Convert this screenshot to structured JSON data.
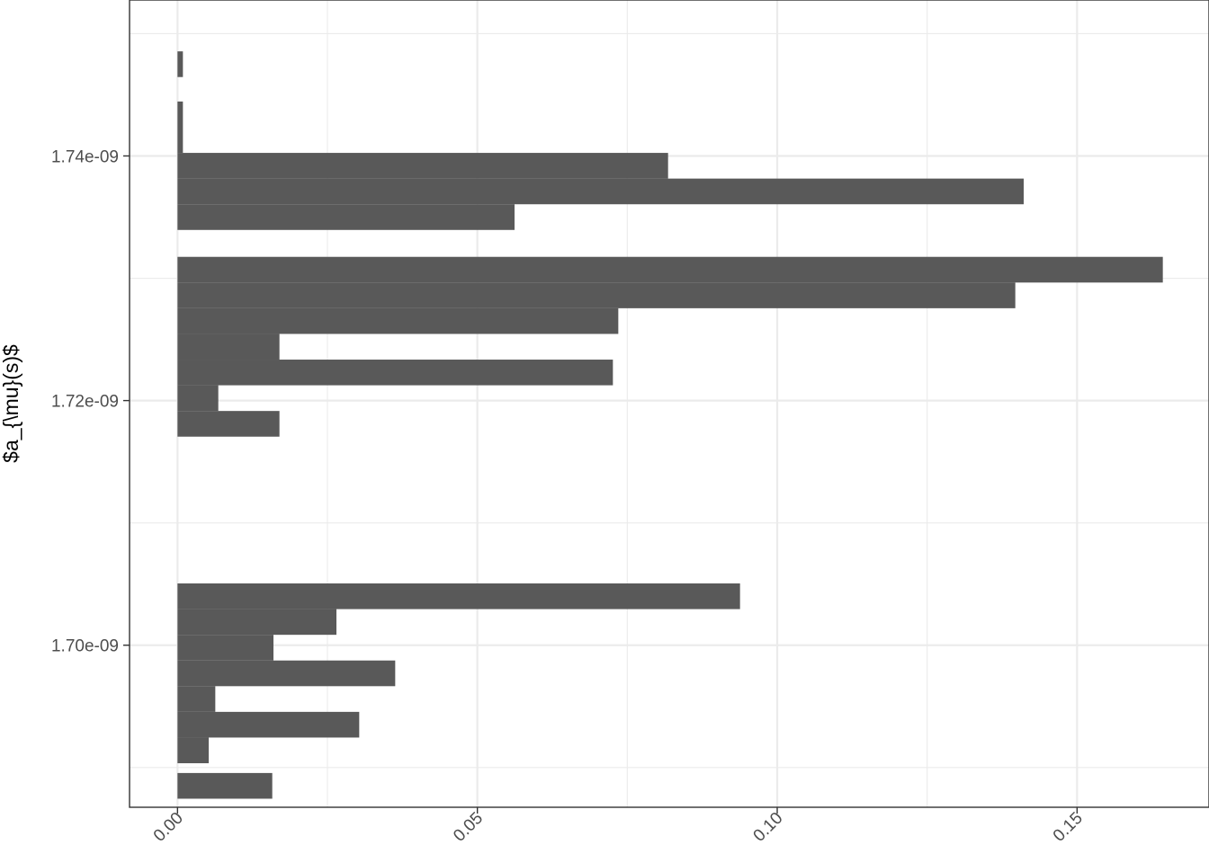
{
  "chart_data": {
    "type": "bar",
    "orientation": "horizontal",
    "title": "",
    "xlabel": "",
    "ylabel": "$a_{\\mu}(s)$",
    "xlim": [
      -0.008,
      0.172
    ],
    "ylim": [
      1.68675e-09,
      1.75275e-09
    ],
    "x_ticks": [
      {
        "value": 0.0,
        "label": "0.00"
      },
      {
        "value": 0.05,
        "label": "0.05"
      },
      {
        "value": 0.1,
        "label": "0.10"
      },
      {
        "value": 0.15,
        "label": "0.15"
      }
    ],
    "y_ticks": [
      {
        "value": 1.7e-09,
        "label": "1.70e-09"
      },
      {
        "value": 1.72e-09,
        "label": "1.72e-09"
      },
      {
        "value": 1.74e-09,
        "label": "1.74e-09"
      }
    ],
    "grid": true,
    "bar_color": "#595959",
    "bars": [
      {
        "y0": 1.68745e-09,
        "y1": 1.68955e-09,
        "value": 0.0158
      },
      {
        "y0": 1.69035e-09,
        "y1": 1.69245e-09,
        "value": 0.0052
      },
      {
        "y0": 1.69245e-09,
        "y1": 1.69455e-09,
        "value": 0.0303
      },
      {
        "y0": 1.69455e-09,
        "y1": 1.69665e-09,
        "value": 0.0063
      },
      {
        "y0": 1.69665e-09,
        "y1": 1.69875e-09,
        "value": 0.0363
      },
      {
        "y0": 1.69875e-09,
        "y1": 1.70085e-09,
        "value": 0.016
      },
      {
        "y0": 1.70085e-09,
        "y1": 1.70295e-09,
        "value": 0.0265
      },
      {
        "y0": 1.70295e-09,
        "y1": 1.70505e-09,
        "value": 0.0938
      },
      {
        "y0": 1.71705e-09,
        "y1": 1.71915e-09,
        "value": 0.017
      },
      {
        "y0": 1.71915e-09,
        "y1": 1.72125e-09,
        "value": 0.0068
      },
      {
        "y0": 1.72125e-09,
        "y1": 1.72335e-09,
        "value": 0.0726
      },
      {
        "y0": 1.72335e-09,
        "y1": 1.72545e-09,
        "value": 0.017
      },
      {
        "y0": 1.72545e-09,
        "y1": 1.72755e-09,
        "value": 0.0735
      },
      {
        "y0": 1.72755e-09,
        "y1": 1.72965e-09,
        "value": 0.1397
      },
      {
        "y0": 1.72965e-09,
        "y1": 1.73175e-09,
        "value": 0.1643
      },
      {
        "y0": 1.73395e-09,
        "y1": 1.73605e-09,
        "value": 0.0562
      },
      {
        "y0": 1.73605e-09,
        "y1": 1.73815e-09,
        "value": 0.1411
      },
      {
        "y0": 1.73815e-09,
        "y1": 1.74025e-09,
        "value": 0.0818
      },
      {
        "y0": 1.74025e-09,
        "y1": 1.74235e-09,
        "value": 0.0009
      },
      {
        "y0": 1.74235e-09,
        "y1": 1.74445e-09,
        "value": 0.0009
      },
      {
        "y0": 1.74645e-09,
        "y1": 1.74855e-09,
        "value": 0.0009
      }
    ]
  }
}
